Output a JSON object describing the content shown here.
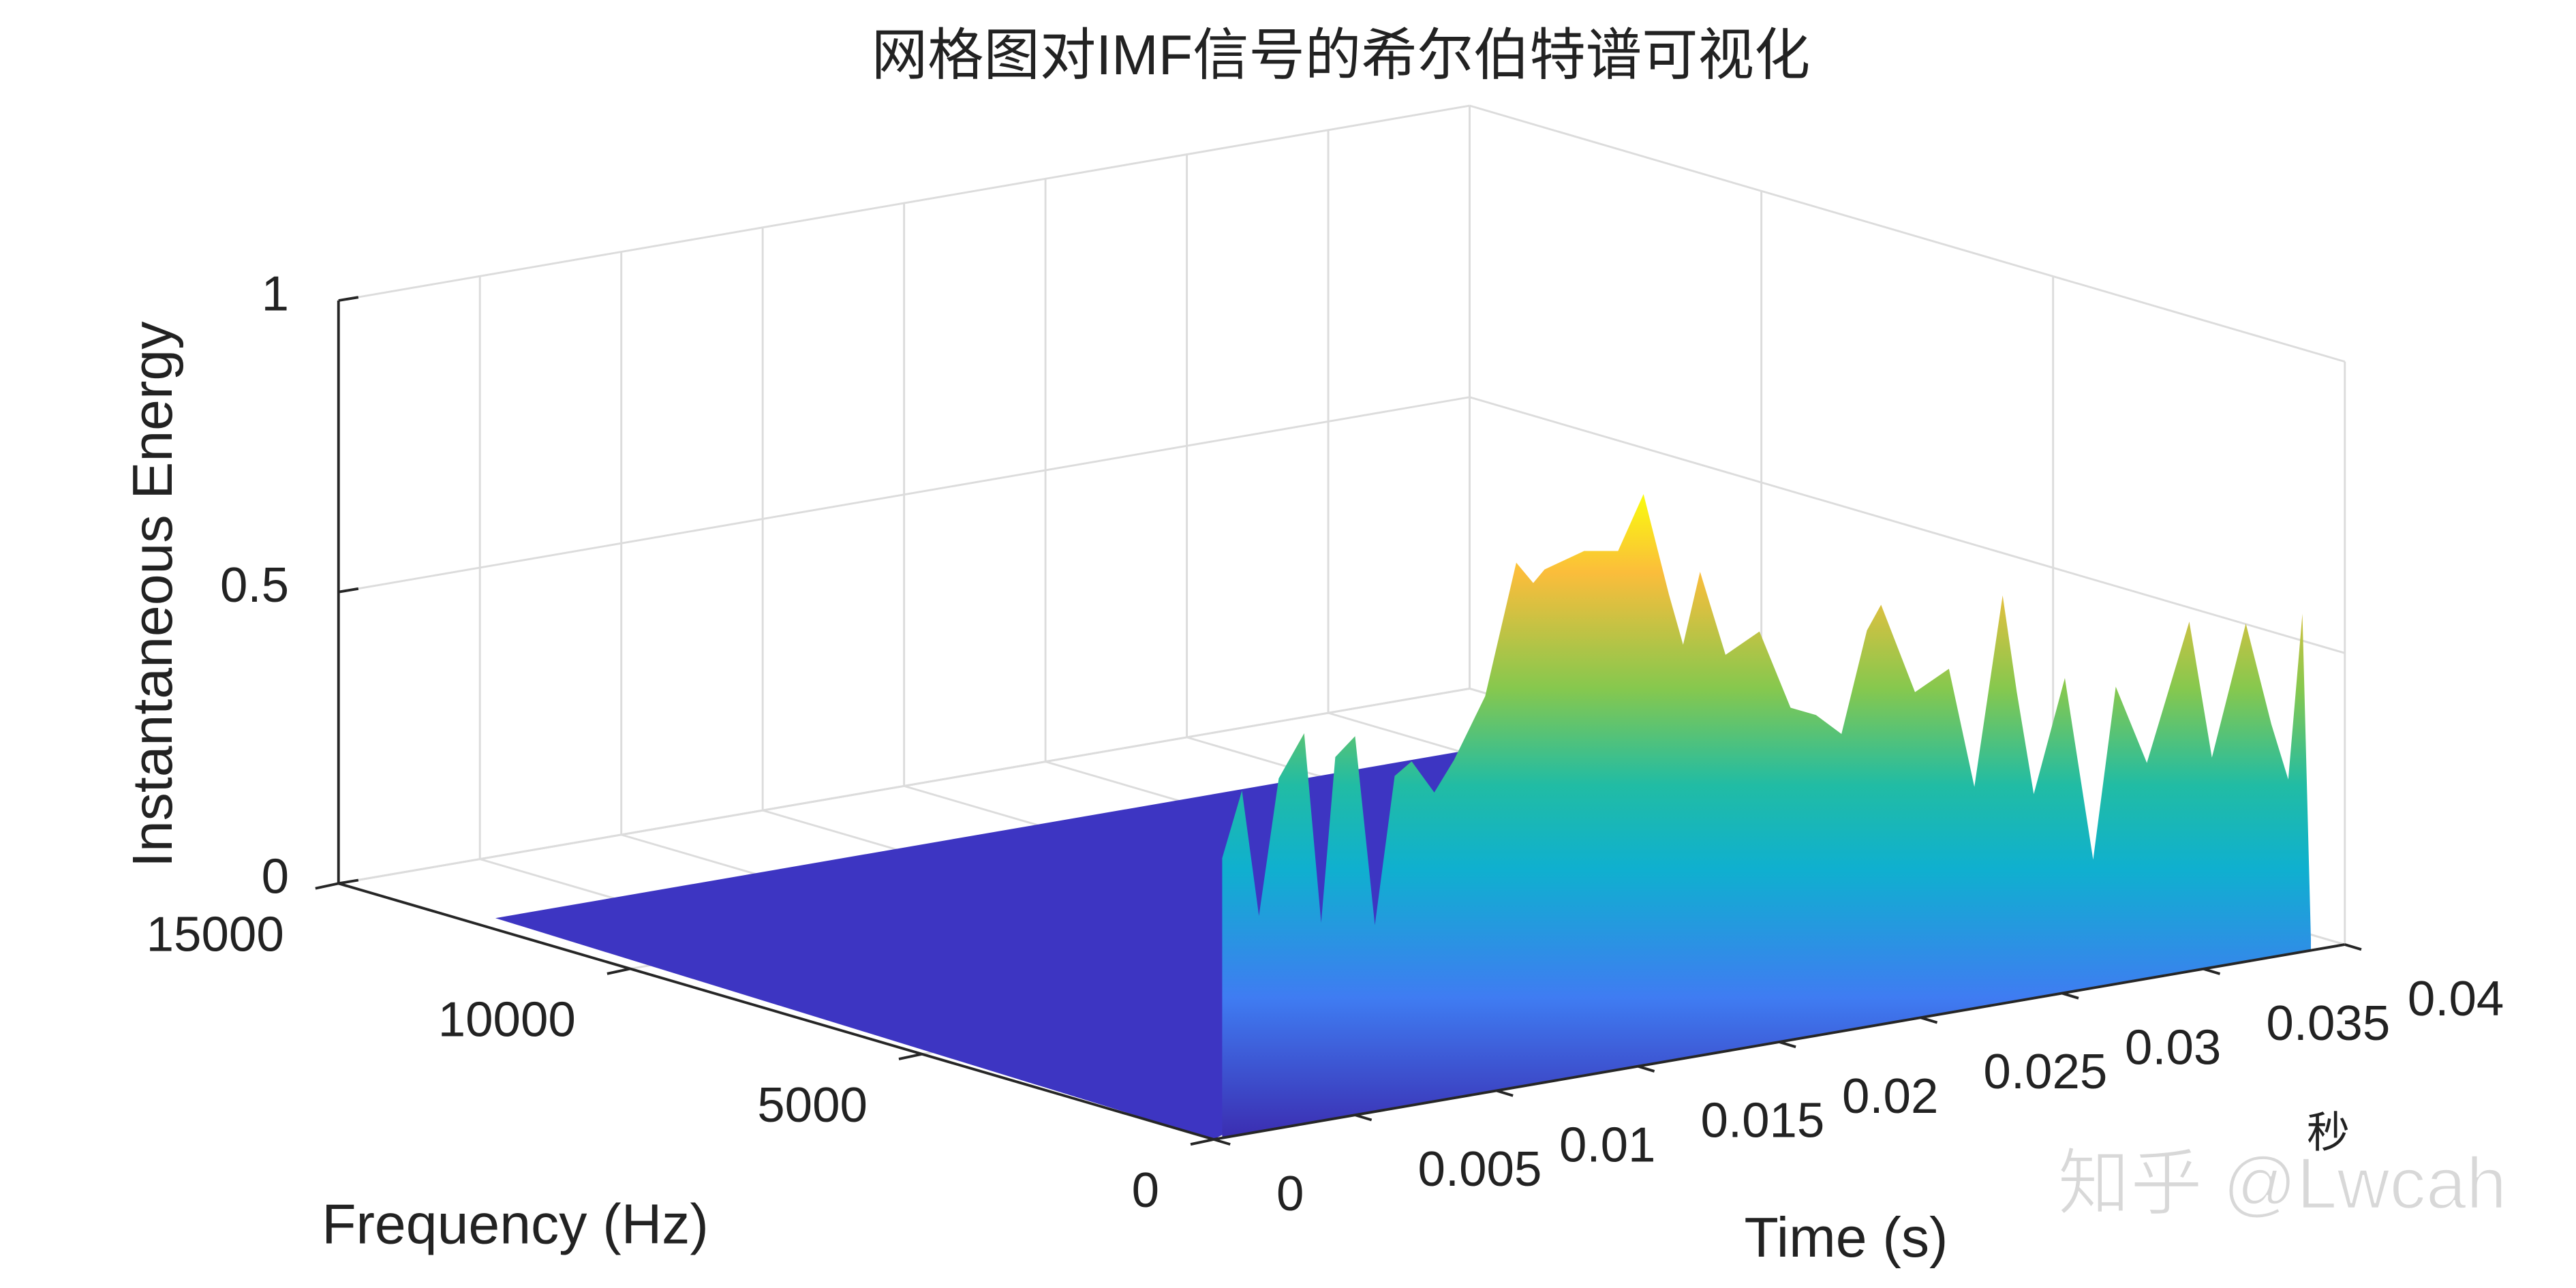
{
  "chart_data": {
    "type": "surface",
    "title": "网格图对IMF信号的希尔伯特谱可视化",
    "xlabel": "Time (s)",
    "ylabel": "Frequency (Hz)",
    "zlabel": "Instantaneous Energy",
    "annotation": "秒",
    "watermark": "知乎 @Lwcah",
    "xlim": [
      0,
      0.04
    ],
    "xticks": [
      0,
      0.005,
      0.01,
      0.015,
      0.02,
      0.025,
      0.03,
      0.035,
      0.04
    ],
    "ylim": [
      0,
      15000
    ],
    "yticks": [
      0,
      5000,
      10000,
      15000
    ],
    "zlim": [
      0,
      1
    ],
    "zticks": [
      0,
      0.5,
      1
    ],
    "grid": true,
    "x": [
      0.0003,
      0.001,
      0.0016,
      0.0023,
      0.0032,
      0.0038,
      0.0043,
      0.005,
      0.0057,
      0.0064,
      0.007,
      0.0078,
      0.0085,
      0.0096,
      0.0107,
      0.0113,
      0.0117,
      0.0131,
      0.0143,
      0.0152,
      0.0161,
      0.0166,
      0.0172,
      0.0181,
      0.0193,
      0.0204,
      0.0213,
      0.0222,
      0.0231,
      0.0236,
      0.0248,
      0.026,
      0.0269,
      0.0279,
      0.0284,
      0.029,
      0.0301,
      0.0311,
      0.0319,
      0.033,
      0.0345,
      0.0353,
      0.0365,
      0.0374,
      0.038,
      0.0385,
      0.0388
    ],
    "values": [
      0.48,
      0.59,
      0.37,
      0.6,
      0.67,
      0.34,
      0.62,
      0.65,
      0.32,
      0.57,
      0.59,
      0.53,
      0.58,
      0.68,
      0.9,
      0.86,
      0.88,
      0.9,
      0.89,
      0.98,
      0.8,
      0.71,
      0.83,
      0.68,
      0.71,
      0.57,
      0.55,
      0.51,
      0.68,
      0.72,
      0.56,
      0.59,
      0.38,
      0.7,
      0.53,
      0.35,
      0.54,
      0.22,
      0.51,
      0.37,
      0.6,
      0.36,
      0.58,
      0.4,
      0.3,
      0.58,
      0.02
    ]
  }
}
